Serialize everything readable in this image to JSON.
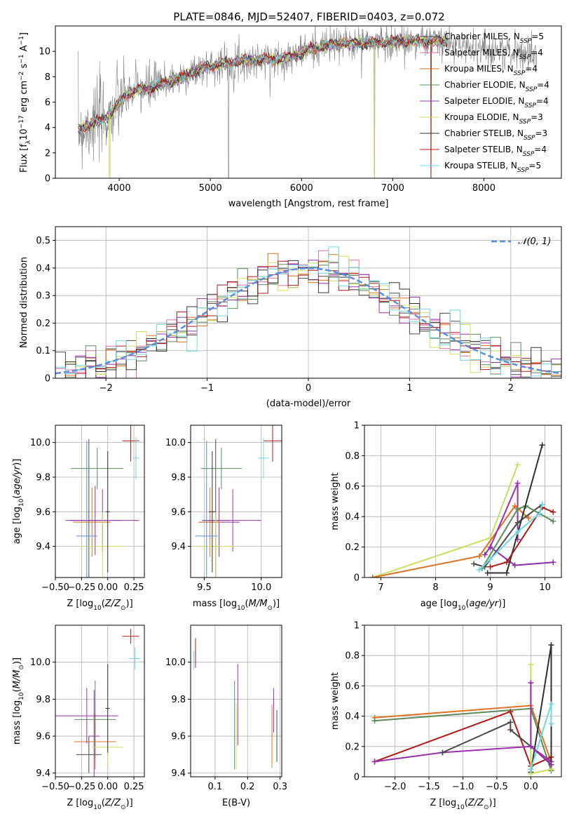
{
  "figure_title": "PLATE=0846, MJD=52407, FIBERID=0403, z=0.072",
  "colors": {
    "chabrier_miles": "#4a4a4a",
    "salpeter_miles": "#8e2ca8",
    "kroupa_miles": "#e07020",
    "chabrier_elodie": "#5a8a5a",
    "salpeter_elodie": "#9a30b0",
    "kroupa_elodie": "#c8e060",
    "chabrier_stelib": "#303030",
    "salpeter_stelib": "#b01818",
    "kroupa_stelib": "#70d8e0",
    "normal": "#5b8ddb",
    "data_gray": "#808080",
    "grid": "#b0b0b0"
  },
  "chart_data": [
    {
      "id": "spectrum",
      "type": "line",
      "title": "",
      "xlabel": "wavelength [Angstrom, rest frame]",
      "ylabel": "Flux [f_λ10^-17 erg cm^-2 s^-1 A^-1]",
      "xlim": [
        3300,
        8850
      ],
      "ylim": [
        0,
        12
      ],
      "xticks": [
        4000,
        5000,
        6000,
        7000,
        8000
      ],
      "yticks": [
        0,
        2,
        4,
        6,
        8,
        10
      ],
      "legend_position": "right",
      "legend": [
        "Chabrier MILES, N_SSP=5",
        "Salpeter MILES, N_SSP=4",
        "Kroupa MILES, N_SSP=4",
        "Chabrier ELODIE, N_SSP=4",
        "Salpeter ELODIE, N_SSP=4",
        "Kroupa ELODIE, N_SSP=3",
        "Chabrier STELIB, N_SSP=3",
        "Salpeter STELIB, N_SSP=4",
        "Kroupa STELIB, N_SSP=5"
      ],
      "model_continuum": {
        "x": [
          3550,
          3700,
          3800,
          3900,
          4000,
          4100,
          4200,
          4300,
          4500,
          4700,
          4900,
          5100,
          5300,
          5500,
          5700,
          5900,
          6100,
          6300,
          6500,
          6700,
          6900,
          7100,
          7300,
          7500,
          7700,
          7900,
          8100,
          8300,
          8500,
          8600
        ],
        "y": [
          3.8,
          4.3,
          4.6,
          5.0,
          6.0,
          6.7,
          7.0,
          7.0,
          7.5,
          8.0,
          8.7,
          9.0,
          9.2,
          9.3,
          9.4,
          9.6,
          10.2,
          10.5,
          10.6,
          10.7,
          10.7,
          10.8,
          10.8,
          10.8,
          10.5,
          10.3,
          10.1,
          9.9,
          9.8,
          9.3
        ]
      },
      "data_dropouts": [
        5200,
        6800,
        7420
      ]
    },
    {
      "id": "residual_hist",
      "type": "bar",
      "title": "",
      "xlabel": "(data-model)/error",
      "ylabel": "Normed distribution",
      "xlim": [
        -2.5,
        2.5
      ],
      "ylim": [
        0,
        0.55
      ],
      "xticks": [
        -2,
        -1,
        0,
        1,
        2
      ],
      "yticks": [
        0,
        0.1,
        0.2,
        0.3,
        0.4,
        0.5
      ],
      "legend": [
        "𝒩(0, 1)"
      ],
      "legend_position": "top-right",
      "bin_width": 0.1,
      "bin_start": -2.5
    },
    {
      "id": "age_vs_Z",
      "type": "scatter",
      "xlabel": "Z [log10(Z/Z⊙)]",
      "ylabel": "age  [log10(age/yr)]",
      "xlim": [
        -0.5,
        0.35
      ],
      "ylim": [
        9.22,
        10.1
      ],
      "xticks": [
        -0.5,
        -0.25,
        0.0,
        0.25
      ],
      "xticklabels": [
        "−0.50",
        "−0.25",
        "0.00",
        "0.25"
      ],
      "yticks": [
        9.4,
        9.6,
        9.8,
        10.0
      ],
      "yticklabels": [
        "9.4",
        "9.6",
        "9.8",
        "10.0"
      ],
      "points": [
        {
          "x": -0.18,
          "y": 9.55,
          "xerr": 0.18,
          "yerr": 0.47,
          "model": "chabrier_miles"
        },
        {
          "x": -0.12,
          "y": 9.55,
          "xerr": 0.25,
          "yerr": 0.2,
          "model": "salpeter_miles"
        },
        {
          "x": -0.15,
          "y": 9.54,
          "xerr": 0.18,
          "yerr": 0.2,
          "model": "kroupa_miles"
        },
        {
          "x": -0.1,
          "y": 9.85,
          "xerr": 0.25,
          "yerr": 0.12,
          "model": "chabrier_elodie"
        },
        {
          "x": -0.05,
          "y": 9.55,
          "xerr": 0.35,
          "yerr": 0.18,
          "model": "salpeter_elodie"
        },
        {
          "x": -0.05,
          "y": 9.4,
          "xerr": 0.22,
          "yerr": 0.2,
          "model": "kroupa_elodie"
        },
        {
          "x": 0.0,
          "y": 9.6,
          "xerr": 0.02,
          "yerr": 0.35,
          "model": "chabrier_stelib"
        },
        {
          "x": 0.22,
          "y": 10.01,
          "xerr": 0.08,
          "yerr": 0.12,
          "model": "salpeter_stelib"
        },
        {
          "x": 0.27,
          "y": 9.91,
          "xerr": 0.03,
          "yerr": 0.12,
          "model": "kroupa_stelib"
        },
        {
          "x": -0.2,
          "y": 9.46,
          "xerr": 0.1,
          "yerr": 0.55,
          "model": "chabrier_miles_b"
        }
      ]
    },
    {
      "id": "age_vs_mass",
      "type": "scatter",
      "xlabel": "mass [log10(M/M⊙)]",
      "ylabel": "",
      "xlim": [
        9.38,
        10.18
      ],
      "ylim": [
        9.22,
        10.1
      ],
      "xticks": [
        9.5,
        10.0
      ],
      "xticklabels": [
        "9.5",
        "10.0"
      ],
      "yticks": [
        9.4,
        9.6,
        9.8,
        10.0
      ],
      "yticklabels": [
        "9.4",
        "9.6",
        "9.8",
        "10.0"
      ],
      "points": [
        {
          "x": 9.6,
          "y": 9.55,
          "xerr": 0.12,
          "yerr": 0.47,
          "model": "chabrier_miles"
        },
        {
          "x": 9.63,
          "y": 9.54,
          "xerr": 0.18,
          "yerr": 0.2,
          "model": "salpeter_miles"
        },
        {
          "x": 9.55,
          "y": 9.54,
          "xerr": 0.1,
          "yerr": 0.2,
          "model": "kroupa_miles"
        },
        {
          "x": 9.65,
          "y": 9.85,
          "xerr": 0.18,
          "yerr": 0.12,
          "model": "chabrier_elodie"
        },
        {
          "x": 9.75,
          "y": 9.55,
          "xerr": 0.25,
          "yerr": 0.18,
          "model": "salpeter_elodie"
        },
        {
          "x": 9.6,
          "y": 9.4,
          "xerr": 0.18,
          "yerr": 0.2,
          "model": "kroupa_elodie"
        },
        {
          "x": 9.57,
          "y": 9.6,
          "xerr": 0.03,
          "yerr": 0.35,
          "model": "chabrier_stelib"
        },
        {
          "x": 10.1,
          "y": 10.01,
          "xerr": 0.08,
          "yerr": 0.12,
          "model": "salpeter_stelib"
        },
        {
          "x": 10.02,
          "y": 9.91,
          "xerr": 0.05,
          "yerr": 0.12,
          "model": "kroupa_stelib"
        },
        {
          "x": 9.52,
          "y": 9.46,
          "xerr": 0.1,
          "yerr": 0.55,
          "model": "chabrier_miles_b"
        }
      ]
    },
    {
      "id": "weight_vs_age",
      "type": "line",
      "xlabel": "age  [log10(age/yr)]",
      "ylabel": "mass weight",
      "xlim": [
        6.7,
        10.3
      ],
      "ylim": [
        0,
        1
      ],
      "xticks": [
        7,
        8,
        9,
        10
      ],
      "yticks": [
        0.0,
        0.2,
        0.4,
        0.6,
        0.8,
        1.0
      ],
      "series": [
        {
          "model": "kroupa_elodie",
          "x": [
            6.85,
            9.0,
            9.5
          ],
          "y": [
            0.0,
            0.26,
            0.74
          ]
        },
        {
          "model": "kroupa_miles",
          "x": [
            6.85,
            8.8,
            9.45,
            9.7
          ],
          "y": [
            0.0,
            0.14,
            0.47,
            0.39
          ]
        },
        {
          "model": "salpeter_miles",
          "x": [
            8.9,
            9.0,
            9.45,
            10.15
          ],
          "y": [
            0.15,
            0.2,
            0.08,
            0.1
          ]
        },
        {
          "model": "salpeter_elodie",
          "x": [
            9.0,
            9.5,
            9.5
          ],
          "y": [
            0.2,
            0.62,
            0.25
          ]
        },
        {
          "model": "chabrier_miles",
          "x": [
            8.7,
            8.9,
            9.5,
            9.95
          ],
          "y": [
            0.09,
            0.07,
            0.36,
            0.48
          ]
        },
        {
          "model": "chabrier_elodie",
          "x": [
            8.85,
            9.5,
            9.65,
            10.15
          ],
          "y": [
            0.06,
            0.45,
            0.47,
            0.37
          ]
        },
        {
          "model": "chabrier_stelib",
          "x": [
            8.95,
            9.3,
            9.95
          ],
          "y": [
            0.03,
            0.03,
            0.87
          ]
        },
        {
          "model": "salpeter_stelib",
          "x": [
            9.0,
            9.3,
            9.95,
            10.15
          ],
          "y": [
            0.07,
            0.1,
            0.46,
            0.43
          ]
        },
        {
          "model": "kroupa_stelib",
          "x": [
            8.8,
            9.0,
            9.5,
            9.9,
            9.95
          ],
          "y": [
            0.05,
            0.12,
            0.3,
            0.42,
            0.48
          ]
        }
      ]
    },
    {
      "id": "mass_vs_Z",
      "type": "scatter",
      "xlabel": "Z [log10(Z/Z⊙)]",
      "ylabel": "mass [log10(M/M⊙)]",
      "xlim": [
        -0.5,
        0.35
      ],
      "ylim": [
        9.38,
        10.2
      ],
      "xticks": [
        -0.5,
        -0.25,
        0.0,
        0.25
      ],
      "xticklabels": [
        "−0.50",
        "−0.25",
        "0.00",
        "0.25"
      ],
      "yticks": [
        9.4,
        9.6,
        9.8,
        10.0
      ],
      "yticklabels": [
        "9.4",
        "9.6",
        "9.8",
        "10.0"
      ],
      "points": [
        {
          "x": -0.18,
          "y": 9.5,
          "xerr": 0.12,
          "yerr": 0.1,
          "model": "chabrier_miles"
        },
        {
          "x": -0.13,
          "y": 9.6,
          "xerr": 0.05,
          "yerr": 0.25,
          "model": "salpeter_miles"
        },
        {
          "x": -0.12,
          "y": 9.57,
          "xerr": 0.2,
          "yerr": 0.15,
          "model": "kroupa_miles"
        },
        {
          "x": -0.12,
          "y": 9.69,
          "xerr": 0.2,
          "yerr": 0.21,
          "model": "chabrier_elodie"
        },
        {
          "x": -0.2,
          "y": 9.71,
          "xerr": 0.3,
          "yerr": 0.15,
          "model": "salpeter_elodie"
        },
        {
          "x": -0.0,
          "y": 9.54,
          "xerr": 0.15,
          "yerr": 0.1,
          "model": "kroupa_elodie"
        },
        {
          "x": 0.0,
          "y": 9.75,
          "xerr": 0.02,
          "yerr": 0.24,
          "model": "chabrier_stelib"
        },
        {
          "x": 0.22,
          "y": 10.14,
          "xerr": 0.08,
          "yerr": 0.04,
          "model": "salpeter_stelib"
        },
        {
          "x": 0.26,
          "y": 10.02,
          "xerr": 0.05,
          "yerr": 0.06,
          "model": "kroupa_stelib"
        }
      ]
    },
    {
      "id": "mass_vs_ebv",
      "type": "scatter",
      "xlabel": "E(B-V)",
      "ylabel": "",
      "xlim": [
        0.025,
        0.305
      ],
      "ylim": [
        9.38,
        10.2
      ],
      "xticks": [
        0.1,
        0.2,
        0.3
      ],
      "xticklabels": [
        "0.1",
        "0.2",
        "0.3"
      ],
      "yticks": [
        9.4,
        9.6,
        9.8,
        10.0
      ],
      "yticklabels": [
        "9.4",
        "9.6",
        "9.8",
        "10.0"
      ],
      "points": [
        {
          "x": 0.04,
          "y": 10.05,
          "xerr": 0,
          "yerr": 0.08,
          "model": "salpeter_stelib"
        },
        {
          "x": 0.035,
          "y": 10.01,
          "xerr": 0,
          "yerr": 0.05,
          "model": "kroupa_stelib"
        },
        {
          "x": 0.16,
          "y": 9.66,
          "xerr": 0,
          "yerr": 0.24,
          "model": "chabrier_elodie"
        },
        {
          "x": 0.17,
          "y": 9.77,
          "xerr": 0,
          "yerr": 0.22,
          "model": "salpeter_elodie"
        },
        {
          "x": 0.165,
          "y": 9.6,
          "xerr": 0,
          "yerr": 0.18,
          "model": "kroupa_elodie"
        },
        {
          "x": 0.275,
          "y": 9.6,
          "xerr": 0,
          "yerr": 0.17,
          "model": "kroupa_miles"
        },
        {
          "x": 0.28,
          "y": 9.74,
          "xerr": 0,
          "yerr": 0.12,
          "model": "salpeter_miles"
        },
        {
          "x": 0.29,
          "y": 9.6,
          "xerr": 0,
          "yerr": 0.14,
          "model": "chabrier_miles"
        }
      ]
    },
    {
      "id": "weight_vs_Z",
      "type": "line",
      "xlabel": "Z [log10(Z/Z⊙)]",
      "ylabel": "mass weight",
      "xlim": [
        -2.45,
        0.45
      ],
      "ylim": [
        0,
        1
      ],
      "xticks": [
        -2.0,
        -1.5,
        -1.0,
        -0.5,
        0.0
      ],
      "xticklabels": [
        "−2.0",
        "−1.5",
        "−1.0",
        "−0.5",
        "0.0"
      ],
      "yticks": [
        0.0,
        0.2,
        0.4,
        0.6,
        0.8,
        1.0
      ],
      "series": [
        {
          "model": "kroupa_miles",
          "x": [
            -2.3,
            0.0,
            0.3
          ],
          "y": [
            0.39,
            0.47,
            0.1
          ]
        },
        {
          "model": "chabrier_elodie",
          "x": [
            -2.3,
            0.0,
            0.3
          ],
          "y": [
            0.37,
            0.45,
            0.04
          ]
        },
        {
          "model": "salpeter_stelib",
          "x": [
            -2.3,
            -0.3,
            0.0,
            0.3
          ],
          "y": [
            0.1,
            0.43,
            0.07,
            0.13
          ]
        },
        {
          "model": "salpeter_elodie",
          "x": [
            -2.3,
            -1.3,
            0.0,
            0.3
          ],
          "y": [
            0.1,
            0.16,
            0.2,
            0.1
          ]
        },
        {
          "model": "chabrier_miles",
          "x": [
            -1.3,
            -0.3,
            -0.3,
            0.0
          ],
          "y": [
            0.16,
            0.36,
            0.31,
            0.2
          ]
        },
        {
          "model": "chabrier_stelib",
          "x": [
            0.0,
            0.3,
            0.3
          ],
          "y": [
            0.03,
            0.87,
            0.05
          ]
        },
        {
          "model": "kroupa_elodie",
          "x": [
            0.0,
            0.0,
            0.3
          ],
          "y": [
            0.74,
            0.02,
            0.05
          ]
        },
        {
          "model": "kroupa_stelib",
          "x": [
            0.0,
            0.3,
            0.3
          ],
          "y": [
            0.05,
            0.48,
            0.35
          ]
        },
        {
          "model": "salpeter_miles",
          "x": [
            0.0,
            0.0,
            0.3
          ],
          "y": [
            0.62,
            0.2,
            0.08
          ]
        }
      ]
    }
  ]
}
